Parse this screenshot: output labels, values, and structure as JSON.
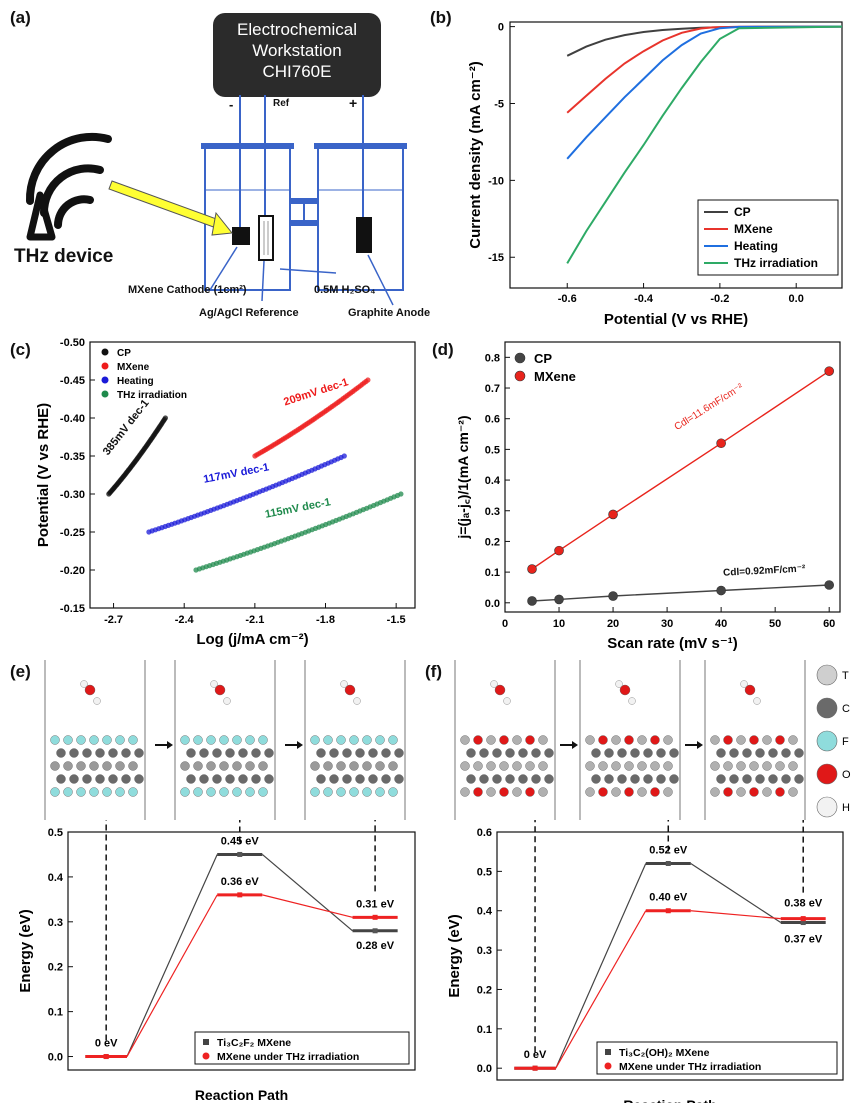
{
  "panels": {
    "a": "(a)",
    "b": "(b)",
    "c": "(c)",
    "d": "(d)",
    "e": "(e)",
    "f": "(f)"
  },
  "setup": {
    "workstation": [
      "Electrochemical",
      "Workstation",
      "CHI760E"
    ],
    "minus": "-",
    "ref": "Ref",
    "plus": "+",
    "thz_device": "THz device",
    "cathode": "MXene Cathode (1cm²)",
    "electrolyte": "0.5M H₂SO₄",
    "reference": "Ag/AgCl Reference",
    "anode": "Graphite Anode"
  },
  "chart_b": {
    "type": "line",
    "xlabel": "Potential (V vs RHE)",
    "ylabel": "Current density (mA cm⁻²)",
    "xlim": [
      -0.75,
      0.12
    ],
    "ylim": [
      -17,
      0.3
    ],
    "xticks": [
      -0.6,
      -0.4,
      -0.2,
      0.0
    ],
    "xtick_labels": [
      "-0.6",
      "-0.4",
      "-0.2",
      "0.0"
    ],
    "yticks": [
      0,
      -5,
      -10,
      -15
    ],
    "ytick_labels": [
      "0",
      "-5",
      "-10",
      "-15"
    ],
    "legend_position": "bottom-right",
    "series": [
      {
        "name": "CP",
        "color": "#404040",
        "x": [
          -0.6,
          -0.55,
          -0.5,
          -0.45,
          -0.4,
          -0.35,
          -0.3,
          -0.25,
          -0.2,
          -0.1,
          0.12
        ],
        "y": [
          -1.9,
          -1.3,
          -0.85,
          -0.55,
          -0.35,
          -0.22,
          -0.14,
          -0.08,
          -0.04,
          -0.01,
          0
        ]
      },
      {
        "name": "MXene",
        "color": "#e8342c",
        "x": [
          -0.6,
          -0.55,
          -0.5,
          -0.45,
          -0.4,
          -0.35,
          -0.3,
          -0.25,
          -0.22,
          -0.15,
          0.12
        ],
        "y": [
          -5.6,
          -4.5,
          -3.4,
          -2.4,
          -1.6,
          -0.9,
          -0.4,
          -0.12,
          -0.05,
          -0.01,
          0
        ]
      },
      {
        "name": "Heating",
        "color": "#1f6fe0",
        "x": [
          -0.6,
          -0.55,
          -0.5,
          -0.45,
          -0.4,
          -0.35,
          -0.3,
          -0.25,
          -0.2,
          -0.15,
          0.12
        ],
        "y": [
          -8.6,
          -7.2,
          -5.9,
          -4.6,
          -3.4,
          -2.2,
          -1.2,
          -0.45,
          -0.1,
          -0.02,
          0
        ]
      },
      {
        "name": "THz irradiation",
        "color": "#2eaa66",
        "x": [
          -0.6,
          -0.55,
          -0.5,
          -0.45,
          -0.4,
          -0.35,
          -0.3,
          -0.25,
          -0.2,
          -0.15,
          0.12
        ],
        "y": [
          -15.4,
          -13.3,
          -11.4,
          -9.5,
          -7.7,
          -5.8,
          -4.0,
          -2.3,
          -0.8,
          -0.1,
          0
        ]
      }
    ]
  },
  "chart_c": {
    "type": "scatter",
    "xlabel": "Log (j/mA cm⁻²)",
    "ylabel": "Potential (V vs RHE)",
    "xlim": [
      -2.8,
      -1.42
    ],
    "ylim": [
      -0.15,
      -0.5
    ],
    "xticks": [
      -2.7,
      -2.4,
      -2.1,
      -1.8,
      -1.5
    ],
    "xtick_labels": [
      "-2.7",
      "-2.4",
      "-2.1",
      "-1.8",
      "-1.5"
    ],
    "yticks": [
      -0.15,
      -0.2,
      -0.25,
      -0.3,
      -0.35,
      -0.4,
      -0.45,
      -0.5
    ],
    "ytick_labels": [
      "-0.15",
      "-0.20",
      "-0.25",
      "-0.30",
      "-0.35",
      "-0.40",
      "-0.45",
      "-0.50"
    ],
    "legend_position": "top-left",
    "series": [
      {
        "name": "CP",
        "color": "#111111",
        "x0": -2.72,
        "x1": -2.48,
        "y0": -0.3,
        "y1": -0.4,
        "slope_label": "385mV dec-1"
      },
      {
        "name": "MXene",
        "color": "#ee1c1c",
        "x0": -2.1,
        "x1": -1.62,
        "y0": -0.35,
        "y1": -0.45,
        "slope_label": "209mV dec-1"
      },
      {
        "name": "Heating",
        "color": "#1a1ad8",
        "x0": -2.55,
        "x1": -1.72,
        "y0": -0.25,
        "y1": -0.35,
        "slope_label": "117mV dec-1"
      },
      {
        "name": "THz irradiation",
        "color": "#1f8a4c",
        "x0": -2.35,
        "x1": -1.48,
        "y0": -0.2,
        "y1": -0.3,
        "slope_label": "115mV dec-1"
      }
    ]
  },
  "chart_d": {
    "type": "line",
    "xlabel": "Scan rate (mV s⁻¹)",
    "ylabel": "j=(jₐ-j꜀)/1(mA cm⁻²)",
    "xlim": [
      0,
      62
    ],
    "ylim": [
      -0.03,
      0.85
    ],
    "xticks": [
      0,
      10,
      20,
      30,
      40,
      50,
      60
    ],
    "xtick_labels": [
      "0",
      "10",
      "20",
      "30",
      "40",
      "50",
      "60"
    ],
    "yticks": [
      0.0,
      0.1,
      0.2,
      0.3,
      0.4,
      0.5,
      0.6,
      0.7,
      0.8
    ],
    "ytick_labels": [
      "0.0",
      "0.1",
      "0.2",
      "0.3",
      "0.4",
      "0.5",
      "0.6",
      "0.7",
      "0.8"
    ],
    "legend_position": "top-left",
    "series": [
      {
        "name": "CP",
        "color": "#444444",
        "x": [
          5,
          10,
          20,
          40,
          60
        ],
        "y": [
          0.006,
          0.011,
          0.022,
          0.04,
          0.058
        ],
        "annotation": "Cdl=0.92mF/cm⁻²"
      },
      {
        "name": "MXene",
        "color": "#e8241c",
        "x": [
          5,
          10,
          20,
          40,
          60
        ],
        "y": [
          0.11,
          0.17,
          0.288,
          0.52,
          0.755
        ],
        "annotation": "Cdl=11.6mF/cm⁻²"
      }
    ]
  },
  "chart_e": {
    "type": "line",
    "xlabel": "Reaction Path",
    "ylabel": "Energy (eV)",
    "ylim": [
      -0.03,
      0.5
    ],
    "yticks": [
      0.0,
      0.1,
      0.2,
      0.3,
      0.4,
      0.5
    ],
    "ytick_labels": [
      "0.0",
      "0.1",
      "0.2",
      "0.3",
      "0.4",
      "0.5"
    ],
    "legend_position": "bottom-right",
    "series": [
      {
        "name": "Ti₃C₂F₂ MXene",
        "color": "#444444",
        "values": [
          0.0,
          0.45,
          0.28
        ]
      },
      {
        "name": "MXene under THz irradiation",
        "color": "#ee2222",
        "values": [
          0.0,
          0.36,
          0.31
        ]
      }
    ],
    "value_labels": [
      "0 eV",
      "0.45 eV",
      "0.36 eV",
      "0.31 eV",
      "0.28 eV"
    ]
  },
  "chart_f": {
    "type": "line",
    "xlabel": "Reaction Path",
    "ylabel": "Energy (eV)",
    "ylim": [
      -0.03,
      0.6
    ],
    "yticks": [
      0.0,
      0.1,
      0.2,
      0.3,
      0.4,
      0.5,
      0.6
    ],
    "ytick_labels": [
      "0.0",
      "0.1",
      "0.2",
      "0.3",
      "0.4",
      "0.5",
      "0.6"
    ],
    "legend_position": "bottom-right",
    "series": [
      {
        "name": "Ti₃C₂(OH)₂ MXene",
        "color": "#444444",
        "values": [
          0.0,
          0.52,
          0.37
        ]
      },
      {
        "name": "MXene under THz irradiation",
        "color": "#ee2222",
        "values": [
          0.0,
          0.4,
          0.38
        ]
      }
    ],
    "value_labels": [
      "0 eV",
      "0.52 eV",
      "0.40 eV",
      "0.38 eV",
      "0.37 eV"
    ]
  },
  "atom_legend": [
    "T",
    "C",
    "F",
    "O",
    "H"
  ],
  "atom_colors": {
    "T": "#cfcfcf",
    "C": "#6a6a6a",
    "F": "#8fdcdc",
    "O": "#e01818",
    "H": "#f2f2f2"
  }
}
